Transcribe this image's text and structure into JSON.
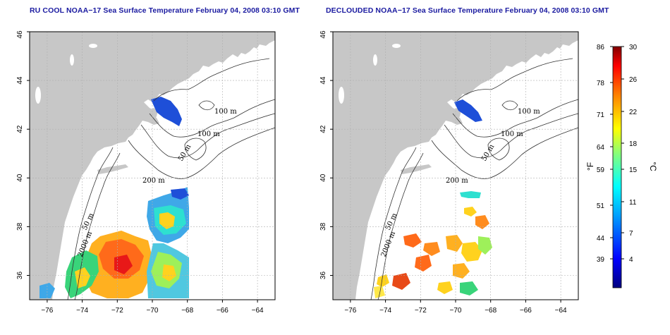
{
  "panels": [
    {
      "title": "RU COOL NOAA−17 Sea Surface Temperature February 04, 2008 03:10 GMT",
      "contour_labels": [
        "100 m",
        "100 m",
        "50 m",
        "200 m",
        "50 m",
        "2000 m"
      ]
    },
    {
      "title": "DECLOUDED NOAA−17 Sea Surface Temperature February 04, 2008 03:10 GMT",
      "contour_labels": [
        "100 m",
        "100 m",
        "50 m",
        "200 m",
        "50 m",
        "2000 m"
      ]
    }
  ],
  "axes": {
    "x_ticks": [
      "−76",
      "−74",
      "−72",
      "−70",
      "−68",
      "−66",
      "−64"
    ],
    "y_ticks": [
      "36",
      "38",
      "40",
      "42",
      "44",
      "46"
    ],
    "x_range": [
      -77,
      -63
    ],
    "y_range": [
      35,
      46
    ],
    "grid": true
  },
  "colorbar": {
    "unit_left": "°F",
    "unit_right": "°C",
    "fahrenheit_ticks": [
      "86",
      "78",
      "71",
      "64",
      "59",
      "51",
      "44",
      "39"
    ],
    "celsius_ticks": [
      "30",
      "26",
      "22",
      "18",
      "15",
      "11",
      "7",
      "4"
    ],
    "range_c": [
      0,
      30
    ],
    "range_f": [
      32,
      86
    ]
  },
  "colors": {
    "land": "#c7c7c7",
    "ocean": "#ffffff",
    "title": "#1a1aa0"
  }
}
